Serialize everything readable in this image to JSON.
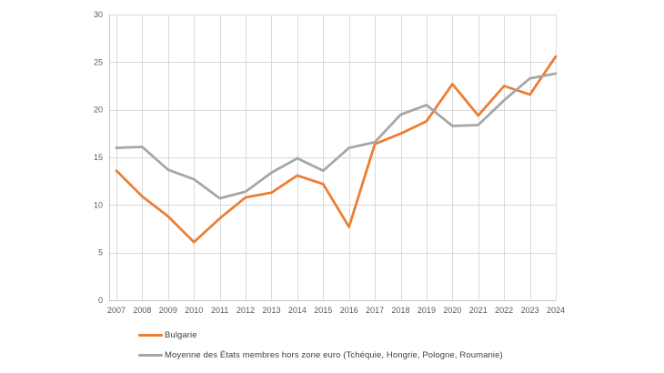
{
  "chart_data": {
    "type": "line",
    "title": "",
    "xlabel": "",
    "ylabel": "",
    "x": [
      "2007",
      "2008",
      "2009",
      "2010",
      "2011",
      "2012",
      "2013",
      "2014",
      "2015",
      "2016",
      "2017",
      "2018",
      "2019",
      "2020",
      "2021",
      "2022",
      "2023",
      "2024"
    ],
    "series": [
      {
        "name": "Bulgarie",
        "color": "#ED7D31",
        "values": [
          13.6,
          10.9,
          8.8,
          6.1,
          8.6,
          10.8,
          11.3,
          13.1,
          12.2,
          7.7,
          16.4,
          17.5,
          18.8,
          22.7,
          19.4,
          22.5,
          21.6,
          25.6
        ]
      },
      {
        "name": "Moyenne des États membres hors zone euro (Tchéquie, Hongrie, Pologne, Roumanie)",
        "color": "#A6A6A6",
        "values": [
          16.0,
          16.1,
          13.7,
          12.7,
          10.7,
          11.4,
          13.4,
          14.9,
          13.6,
          16.0,
          16.6,
          19.5,
          20.5,
          18.3,
          18.4,
          21.0,
          23.3,
          23.8
        ]
      }
    ],
    "ylim": [
      0,
      30
    ],
    "yticks": [
      0,
      5,
      10,
      15,
      20,
      25,
      30
    ],
    "grid": true,
    "legend_position": "bottom-left"
  },
  "style": {
    "gridline_color": "#D9D9D9",
    "axis_color": "#C6C6C6",
    "tick_label_color": "#595959",
    "background": "#FFFFFF"
  }
}
